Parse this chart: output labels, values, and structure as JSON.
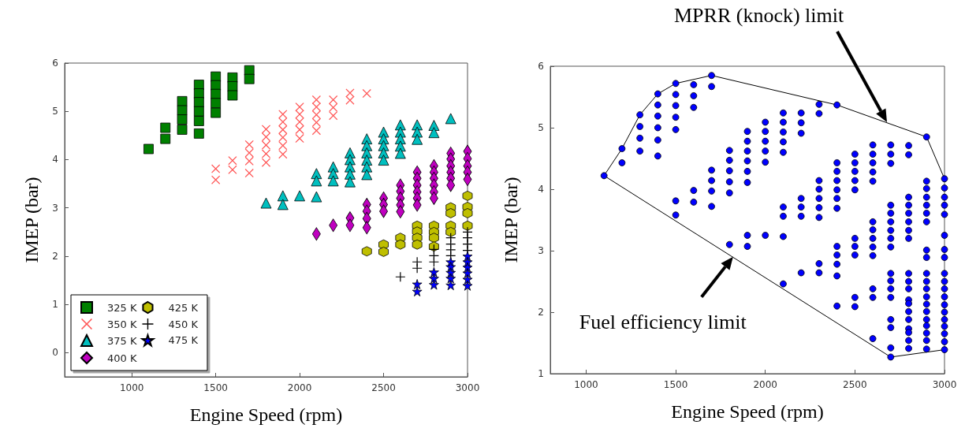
{
  "chart_data": [
    {
      "type": "scatter",
      "xlabel": "Engine Speed (rpm)",
      "ylabel": "IMEP (bar)",
      "xlim": [
        600,
        3000
      ],
      "ylim": [
        -0.5,
        6
      ],
      "xticks": [
        1000,
        1500,
        2000,
        2500,
        3000
      ],
      "yticks": [
        0,
        1,
        2,
        3,
        4,
        5,
        6
      ],
      "grid": false,
      "legend": "bottom left",
      "series": [
        {
          "name": "325 K",
          "color": "#008000",
          "marker": "square",
          "x": [
            1100,
            1200,
            1200,
            1300,
            1300,
            1300,
            1300,
            1400,
            1400,
            1400,
            1400,
            1400,
            1400,
            1500,
            1500,
            1500,
            1500,
            1500,
            1600,
            1600,
            1600,
            1700,
            1700
          ],
          "values": [
            4.22,
            4.66,
            4.43,
            5.21,
            5.02,
            4.83,
            4.62,
            5.55,
            5.37,
            5.19,
            5.0,
            4.8,
            4.54,
            5.72,
            5.54,
            5.36,
            5.17,
            4.97,
            5.7,
            5.52,
            5.33,
            5.85,
            5.67
          ]
        },
        {
          "name": "350 K",
          "color": "#ff5555",
          "marker": "cross",
          "x": [
            1500,
            1500,
            1600,
            1600,
            1700,
            1700,
            1700,
            1700,
            1800,
            1800,
            1800,
            1800,
            1800,
            1900,
            1900,
            1900,
            1900,
            1900,
            1900,
            2000,
            2000,
            2000,
            2000,
            2000,
            2100,
            2100,
            2100,
            2100,
            2100,
            2200,
            2200,
            2200,
            2300,
            2300,
            2400
          ],
          "values": [
            3.81,
            3.58,
            3.98,
            3.79,
            4.31,
            4.14,
            3.97,
            3.72,
            4.63,
            4.47,
            4.3,
            4.12,
            3.94,
            4.94,
            4.78,
            4.62,
            4.46,
            4.29,
            4.11,
            5.09,
            4.94,
            4.78,
            4.62,
            4.44,
            5.24,
            5.09,
            4.93,
            4.77,
            4.6,
            5.24,
            5.08,
            4.91,
            5.38,
            5.23,
            5.37
          ]
        },
        {
          "name": "375 K",
          "color": "#00bfbf",
          "marker": "triangle",
          "x": [
            1800,
            1900,
            1900,
            2000,
            2100,
            2100,
            2100,
            2200,
            2200,
            2200,
            2300,
            2300,
            2300,
            2300,
            2300,
            2400,
            2400,
            2400,
            2400,
            2400,
            2400,
            2500,
            2500,
            2500,
            2500,
            2500,
            2600,
            2600,
            2600,
            2600,
            2600,
            2700,
            2700,
            2700,
            2800,
            2800,
            2900
          ],
          "values": [
            3.1,
            3.25,
            3.07,
            3.25,
            3.71,
            3.56,
            3.23,
            3.85,
            3.71,
            3.56,
            4.14,
            4.0,
            3.85,
            3.7,
            3.54,
            4.43,
            4.29,
            4.14,
            3.99,
            3.85,
            3.69,
            4.57,
            4.43,
            4.29,
            4.14,
            3.99,
            4.72,
            4.57,
            4.43,
            4.28,
            4.13,
            4.72,
            4.57,
            4.42,
            4.71,
            4.56,
            4.85
          ]
        },
        {
          "name": "400 K",
          "color": "#bf00bf",
          "marker": "diamond",
          "x": [
            2100,
            2200,
            2300,
            2300,
            2400,
            2400,
            2400,
            2400,
            2500,
            2500,
            2500,
            2600,
            2600,
            2600,
            2600,
            2600,
            2700,
            2700,
            2700,
            2700,
            2700,
            2700,
            2800,
            2800,
            2800,
            2800,
            2800,
            2800,
            2900,
            2900,
            2900,
            2900,
            2900,
            2900,
            3000,
            3000,
            3000,
            3000,
            3000
          ],
          "values": [
            2.46,
            2.64,
            2.79,
            2.64,
            3.07,
            2.93,
            2.78,
            2.59,
            3.2,
            3.07,
            2.93,
            3.47,
            3.34,
            3.2,
            3.06,
            2.92,
            3.74,
            3.61,
            3.47,
            3.33,
            3.2,
            3.06,
            3.87,
            3.74,
            3.61,
            3.47,
            3.33,
            3.2,
            4.13,
            4.01,
            3.87,
            3.74,
            3.61,
            3.47,
            4.17,
            4.02,
            3.87,
            3.74,
            3.59
          ]
        },
        {
          "name": "425 K",
          "color": "#bfbf00",
          "x": [
            2400,
            2500,
            2500,
            2600,
            2600,
            2700,
            2700,
            2700,
            2700,
            2800,
            2800,
            2800,
            2800,
            2900,
            2900,
            2900,
            2900,
            3000,
            3000,
            3000,
            3000
          ],
          "values": [
            2.1,
            2.24,
            2.09,
            2.38,
            2.24,
            2.63,
            2.51,
            2.38,
            2.24,
            2.63,
            2.5,
            2.38,
            2.2,
            3.01,
            2.89,
            2.63,
            2.5,
            3.25,
            3.02,
            2.89,
            2.63
          ]
        },
        {
          "name": "450 K",
          "color": "#000000",
          "marker": "plus",
          "x": [
            2600,
            2700,
            2700,
            2800,
            2800,
            2800,
            2900,
            2900,
            2900,
            2900,
            3000,
            3000,
            3000,
            3000
          ],
          "values": [
            1.57,
            1.88,
            1.75,
            2.14,
            2.01,
            1.88,
            2.38,
            2.25,
            2.13,
            2.01,
            2.5,
            2.38,
            2.25,
            2.12
          ]
        },
        {
          "name": "475 K",
          "color": "#0000ff",
          "marker": "star",
          "x": [
            2700,
            2700,
            2800,
            2800,
            2800,
            2900,
            2900,
            2900,
            2900,
            2900,
            3000,
            3000,
            3000,
            3000,
            3000,
            3000
          ],
          "values": [
            1.42,
            1.27,
            1.67,
            1.54,
            1.41,
            1.88,
            1.78,
            1.66,
            1.54,
            1.4,
            2.0,
            1.88,
            1.77,
            1.65,
            1.52,
            1.39
          ]
        }
      ]
    },
    {
      "type": "scatter",
      "xlabel": "Engine Speed (rpm)",
      "ylabel": "IMEP (bar)",
      "xlim": [
        800,
        3000
      ],
      "ylim": [
        1,
        6
      ],
      "xticks": [
        1000,
        1500,
        2000,
        2500,
        3000
      ],
      "yticks": [
        1,
        2,
        3,
        4,
        5,
        6
      ],
      "grid": false,
      "annotations": [
        "MPRR (knock) limit",
        {
          "text": "Fuel efficiency limit",
          "x": 1820,
          "y": 2.9
        }
      ],
      "series": [
        {
          "color": "#0000ff",
          "marker": "circle",
          "x": [
            1100,
            1200,
            1200,
            1300,
            1300,
            1300,
            1300,
            1400,
            1400,
            1400,
            1400,
            1400,
            1400,
            1500,
            1500,
            1500,
            1500,
            1500,
            1600,
            1600,
            1600,
            1700,
            1700,
            1500,
            1500,
            1600,
            1600,
            1700,
            1700,
            1700,
            1700,
            1800,
            1800,
            1800,
            1800,
            1800,
            1900,
            1900,
            1900,
            1900,
            1900,
            1900,
            2000,
            2000,
            2000,
            2000,
            2000,
            2100,
            2100,
            2100,
            2100,
            2100,
            2200,
            2200,
            2200,
            2300,
            2300,
            2400,
            1800,
            1900,
            1900,
            2000,
            2100,
            2100,
            2100,
            2200,
            2200,
            2200,
            2300,
            2300,
            2300,
            2300,
            2300,
            2400,
            2400,
            2400,
            2400,
            2400,
            2400,
            2500,
            2500,
            2500,
            2500,
            2500,
            2600,
            2600,
            2600,
            2600,
            2600,
            2700,
            2700,
            2700,
            2800,
            2800,
            2900,
            2100,
            2200,
            2300,
            2300,
            2400,
            2400,
            2400,
            2400,
            2500,
            2500,
            2500,
            2600,
            2600,
            2600,
            2600,
            2600,
            2700,
            2700,
            2700,
            2700,
            2700,
            2700,
            2800,
            2800,
            2800,
            2800,
            2800,
            2800,
            2900,
            2900,
            2900,
            2900,
            2900,
            2900,
            3000,
            3000,
            3000,
            3000,
            3000,
            2400,
            2500,
            2500,
            2600,
            2600,
            2700,
            2700,
            2700,
            2700,
            2800,
            2800,
            2800,
            2800,
            2900,
            2900,
            2900,
            2900,
            3000,
            3000,
            3000,
            3000,
            2600,
            2700,
            2700,
            2800,
            2800,
            2800,
            2800,
            2900,
            2900,
            2900,
            2900,
            3000,
            3000,
            3000,
            3000,
            2700,
            2700,
            2800,
            2800,
            2800,
            2900,
            2900,
            2900,
            2900,
            2900,
            3000,
            3000,
            3000,
            3000,
            3000,
            3000
          ],
          "values": [
            4.22,
            4.66,
            4.43,
            5.21,
            5.02,
            4.83,
            4.62,
            5.55,
            5.37,
            5.19,
            5.0,
            4.8,
            4.54,
            5.72,
            5.54,
            5.36,
            5.17,
            4.97,
            5.7,
            5.52,
            5.33,
            5.85,
            5.67,
            3.81,
            3.58,
            3.98,
            3.79,
            4.31,
            4.14,
            3.97,
            3.72,
            4.63,
            4.47,
            4.3,
            4.12,
            3.94,
            4.94,
            4.78,
            4.62,
            4.46,
            4.29,
            4.11,
            5.09,
            4.94,
            4.78,
            4.62,
            4.44,
            5.24,
            5.09,
            4.93,
            4.77,
            4.6,
            5.24,
            5.08,
            4.91,
            5.38,
            5.23,
            5.37,
            3.1,
            3.25,
            3.07,
            3.25,
            3.71,
            3.56,
            3.23,
            3.85,
            3.71,
            3.56,
            4.14,
            4.0,
            3.85,
            3.7,
            3.54,
            4.43,
            4.29,
            4.14,
            3.99,
            3.85,
            3.69,
            4.57,
            4.43,
            4.29,
            4.14,
            3.99,
            4.72,
            4.57,
            4.43,
            4.28,
            4.13,
            4.72,
            4.57,
            4.42,
            4.71,
            4.56,
            4.85,
            2.46,
            2.64,
            2.79,
            2.64,
            3.07,
            2.93,
            2.78,
            2.59,
            3.2,
            3.07,
            2.93,
            3.47,
            3.34,
            3.2,
            3.06,
            2.92,
            3.74,
            3.61,
            3.47,
            3.33,
            3.2,
            3.06,
            3.87,
            3.74,
            3.61,
            3.47,
            3.33,
            3.2,
            4.13,
            4.01,
            3.87,
            3.74,
            3.61,
            3.47,
            4.17,
            4.02,
            3.87,
            3.74,
            3.59,
            2.1,
            2.24,
            2.09,
            2.38,
            2.24,
            2.63,
            2.51,
            2.38,
            2.24,
            2.63,
            2.5,
            2.38,
            2.2,
            3.01,
            2.89,
            2.63,
            2.5,
            3.25,
            3.02,
            2.89,
            2.63,
            1.57,
            1.88,
            1.75,
            2.14,
            2.01,
            1.88,
            1.73,
            2.38,
            2.25,
            2.13,
            2.01,
            2.5,
            2.38,
            2.25,
            2.12,
            1.42,
            1.27,
            1.67,
            1.54,
            1.41,
            1.88,
            1.78,
            1.66,
            1.54,
            1.4,
            2.0,
            1.88,
            1.77,
            1.65,
            1.52,
            1.39
          ]
        },
        {
          "type": "line",
          "color": "#000000",
          "marker": "none",
          "line_style": "solid",
          "x": [
            3000,
            2900,
            2400,
            1700,
            1500,
            1400,
            1300,
            1200,
            1100,
            2700,
            3000
          ],
          "values": [
            4.17,
            4.85,
            5.37,
            5.85,
            5.72,
            5.55,
            5.21,
            4.66,
            4.22,
            1.27,
            1.39
          ]
        }
      ]
    }
  ]
}
